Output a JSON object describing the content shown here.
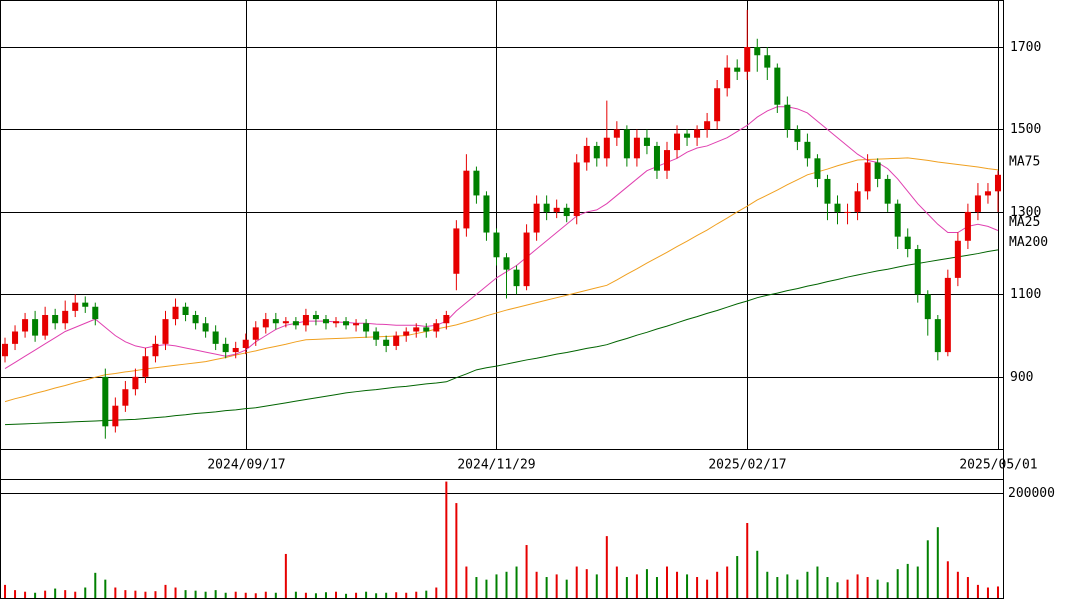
{
  "chart_data": {
    "type": "candlestick",
    "categories": [
      null,
      null,
      null,
      null,
      null,
      null,
      null,
      null,
      null,
      null,
      null,
      null,
      null,
      null,
      null,
      null,
      null,
      null,
      null,
      null,
      null,
      null,
      null,
      null,
      "2024/09/17",
      null,
      null,
      null,
      null,
      null,
      null,
      null,
      null,
      null,
      null,
      null,
      null,
      null,
      null,
      null,
      null,
      null,
      null,
      null,
      null,
      null,
      null,
      null,
      null,
      "2024/11/29",
      null,
      null,
      null,
      null,
      null,
      null,
      null,
      null,
      null,
      null,
      null,
      null,
      null,
      null,
      null,
      null,
      null,
      null,
      null,
      null,
      null,
      null,
      null,
      null,
      "2025/02/17",
      null,
      null,
      null,
      null,
      null,
      null,
      null,
      null,
      null,
      null,
      null,
      null,
      null,
      null,
      null,
      null,
      null,
      null,
      null,
      null,
      null,
      null,
      null,
      null,
      "2025/05/01"
    ],
    "open": [
      950,
      980,
      1010,
      1040,
      1000,
      1050,
      1030,
      1060,
      1080,
      1070,
      900,
      780,
      830,
      870,
      900,
      950,
      980,
      1040,
      1070,
      1050,
      1030,
      1010,
      980,
      960,
      970,
      990,
      1020,
      1040,
      1030,
      1035,
      1025,
      1050,
      1040,
      1030,
      1035,
      1025,
      1030,
      1010,
      990,
      975,
      1000,
      1010,
      1020,
      1010,
      1030,
      1150,
      1260,
      1400,
      1340,
      1250,
      1190,
      1160,
      1120,
      1250,
      1320,
      1300,
      1310,
      1290,
      1420,
      1460,
      1430,
      1480,
      1500,
      1430,
      1480,
      1460,
      1400,
      1450,
      1490,
      1480,
      1500,
      1520,
      1600,
      1650,
      1640,
      1700,
      1680,
      1650,
      1560,
      1500,
      1470,
      1430,
      1380,
      1320,
      1300,
      1300,
      1350,
      1420,
      1380,
      1320,
      1240,
      1210,
      1100,
      1040,
      960,
      1140,
      1230,
      1300,
      1340,
      1350
    ],
    "high": [
      995,
      1025,
      1055,
      1060,
      1070,
      1065,
      1085,
      1100,
      1095,
      1080,
      920,
      850,
      890,
      920,
      970,
      1000,
      1060,
      1090,
      1080,
      1060,
      1045,
      1025,
      995,
      985,
      1005,
      1035,
      1055,
      1055,
      1045,
      1045,
      1065,
      1060,
      1050,
      1045,
      1045,
      1040,
      1040,
      1020,
      1000,
      1010,
      1020,
      1030,
      1030,
      1040,
      1060,
      1280,
      1440,
      1410,
      1350,
      1260,
      1200,
      1170,
      1270,
      1340,
      1340,
      1330,
      1320,
      1440,
      1480,
      1470,
      1570,
      1520,
      1510,
      1500,
      1500,
      1470,
      1470,
      1510,
      1500,
      1510,
      1540,
      1620,
      1680,
      1670,
      1790,
      1720,
      1700,
      1660,
      1580,
      1510,
      1490,
      1440,
      1390,
      1340,
      1320,
      1370,
      1440,
      1430,
      1390,
      1330,
      1260,
      1220,
      1110,
      1050,
      1160,
      1250,
      1320,
      1370,
      1370,
      1400
    ],
    "low": [
      935,
      965,
      995,
      985,
      990,
      1015,
      1015,
      1045,
      1055,
      1025,
      750,
      765,
      815,
      855,
      885,
      935,
      965,
      1025,
      1035,
      1015,
      995,
      965,
      945,
      945,
      955,
      975,
      1005,
      1015,
      1020,
      1015,
      1010,
      1025,
      1015,
      1020,
      1015,
      1010,
      995,
      975,
      960,
      965,
      985,
      995,
      995,
      995,
      1015,
      1110,
      1240,
      1320,
      1230,
      1170,
      1090,
      1100,
      1110,
      1230,
      1280,
      1285,
      1275,
      1270,
      1400,
      1410,
      1410,
      1460,
      1410,
      1410,
      1440,
      1380,
      1380,
      1430,
      1460,
      1460,
      1480,
      1500,
      1580,
      1620,
      1620,
      1640,
      1620,
      1540,
      1480,
      1450,
      1410,
      1360,
      1280,
      1270,
      1270,
      1280,
      1330,
      1360,
      1300,
      1210,
      1190,
      1080,
      1000,
      940,
      950,
      1120,
      1210,
      1280,
      1320,
      1300
    ],
    "close": [
      980,
      1010,
      1040,
      1000,
      1050,
      1030,
      1060,
      1080,
      1070,
      1040,
      780,
      830,
      870,
      900,
      950,
      980,
      1040,
      1070,
      1050,
      1030,
      1010,
      980,
      960,
      970,
      990,
      1020,
      1040,
      1030,
      1035,
      1025,
      1050,
      1040,
      1030,
      1035,
      1025,
      1030,
      1010,
      990,
      975,
      1000,
      1010,
      1020,
      1010,
      1030,
      1050,
      1260,
      1400,
      1340,
      1250,
      1190,
      1160,
      1120,
      1250,
      1320,
      1300,
      1310,
      1290,
      1420,
      1460,
      1430,
      1480,
      1500,
      1430,
      1480,
      1460,
      1400,
      1450,
      1490,
      1480,
      1500,
      1520,
      1600,
      1650,
      1640,
      1700,
      1680,
      1650,
      1560,
      1500,
      1470,
      1430,
      1380,
      1320,
      1300,
      1300,
      1350,
      1420,
      1380,
      1320,
      1240,
      1210,
      1100,
      1040,
      960,
      1140,
      1230,
      1300,
      1340,
      1350,
      1390
    ],
    "up_color": "#e60000",
    "down_color": "#008000",
    "ma": [
      {
        "name": "MA75",
        "color": "#f0a020",
        "values": [
          840,
          847,
          853,
          860,
          866,
          873,
          879,
          886,
          892,
          899,
          905,
          908,
          912,
          915,
          919,
          922,
          925,
          928,
          931,
          934,
          937,
          942,
          947,
          953,
          958,
          963,
          969,
          974,
          979,
          985,
          990,
          991,
          992,
          993,
          994,
          995,
          996,
          997,
          998,
          999,
          1000,
          1005,
          1010,
          1016,
          1021,
          1026,
          1033,
          1040,
          1048,
          1055,
          1062,
          1068,
          1074,
          1080,
          1086,
          1092,
          1098,
          1104,
          1110,
          1116,
          1122,
          1135,
          1149,
          1162,
          1176,
          1189,
          1202,
          1216,
          1229,
          1243,
          1256,
          1271,
          1285,
          1300,
          1314,
          1329,
          1341,
          1353,
          1366,
          1378,
          1390,
          1397,
          1404,
          1412,
          1419,
          1426,
          1427,
          1428,
          1429,
          1430,
          1431,
          1428,
          1425,
          1421,
          1418,
          1415,
          1412,
          1409,
          1405,
          1402
        ]
      },
      {
        "name": "MA25",
        "color": "#e040b0",
        "values": [
          920,
          935,
          950,
          965,
          980,
          995,
          1010,
          1020,
          1030,
          1040,
          1020,
          1000,
          985,
          975,
          970,
          975,
          978,
          975,
          970,
          965,
          960,
          955,
          950,
          955,
          965,
          985,
          1000,
          1015,
          1025,
          1030,
          1035,
          1035,
          1035,
          1033,
          1032,
          1030,
          1030,
          1028,
          1027,
          1025,
          1025,
          1025,
          1022,
          1025,
          1035,
          1060,
          1080,
          1100,
          1120,
          1140,
          1155,
          1170,
          1190,
          1210,
          1230,
          1250,
          1270,
          1290,
          1300,
          1305,
          1320,
          1340,
          1360,
          1380,
          1400,
          1410,
          1420,
          1430,
          1445,
          1455,
          1460,
          1470,
          1480,
          1495,
          1510,
          1530,
          1545,
          1555,
          1555,
          1550,
          1540,
          1520,
          1500,
          1480,
          1460,
          1440,
          1425,
          1420,
          1405,
          1380,
          1350,
          1320,
          1295,
          1270,
          1250,
          1250,
          1265,
          1270,
          1265,
          1255
        ]
      },
      {
        "name": "MA200",
        "color": "#006400",
        "values": [
          784,
          785,
          786,
          787,
          788,
          789,
          790,
          791,
          792,
          793,
          794,
          795,
          796,
          797,
          799,
          801,
          803,
          806,
          808,
          811,
          813,
          815,
          818,
          820,
          823,
          825,
          829,
          833,
          837,
          841,
          845,
          849,
          853,
          857,
          861,
          864,
          867,
          869,
          872,
          875,
          877,
          880,
          883,
          885,
          888,
          898,
          907,
          917,
          922,
          926,
          931,
          936,
          941,
          945,
          950,
          955,
          959,
          964,
          969,
          973,
          978,
          986,
          993,
          1001,
          1008,
          1016,
          1023,
          1031,
          1039,
          1046,
          1054,
          1061,
          1069,
          1077,
          1084,
          1092,
          1098,
          1103,
          1109,
          1114,
          1120,
          1125,
          1131,
          1136,
          1142,
          1147,
          1152,
          1157,
          1161,
          1166,
          1171,
          1175,
          1179,
          1183,
          1187,
          1191,
          1195,
          1199,
          1204,
          1208
        ]
      }
    ],
    "ylim": [
      725,
      1814
    ],
    "yticks": [
      900,
      1100,
      1300,
      1500,
      1700
    ],
    "grid": true,
    "volume": [
      25000,
      15000,
      12000,
      10000,
      14000,
      18000,
      15000,
      12000,
      20000,
      48000,
      35000,
      20000,
      15000,
      14000,
      12000,
      13000,
      25000,
      20000,
      15000,
      14000,
      12000,
      15000,
      10000,
      12000,
      10000,
      9000,
      12000,
      10000,
      84000,
      12000,
      10000,
      9000,
      11000,
      12000,
      8000,
      10000,
      12000,
      9000,
      10000,
      11000,
      10000,
      12000,
      14000,
      20000,
      222000,
      181000,
      60000,
      40000,
      35000,
      45000,
      50000,
      60000,
      101000,
      50000,
      40000,
      45000,
      35000,
      60000,
      55000,
      45000,
      118000,
      60000,
      40000,
      45000,
      55000,
      40000,
      60000,
      50000,
      45000,
      40000,
      35000,
      50000,
      60000,
      80000,
      143000,
      90000,
      50000,
      40000,
      45000,
      35000,
      50000,
      60000,
      40000,
      30000,
      35000,
      45000,
      40000,
      35000,
      30000,
      55000,
      65000,
      60000,
      110000,
      135000,
      70000,
      50000,
      40000,
      25000,
      20000,
      22000
    ],
    "volume_ylim": [
      0,
      225000
    ],
    "volume_yticks": [
      200000
    ]
  }
}
